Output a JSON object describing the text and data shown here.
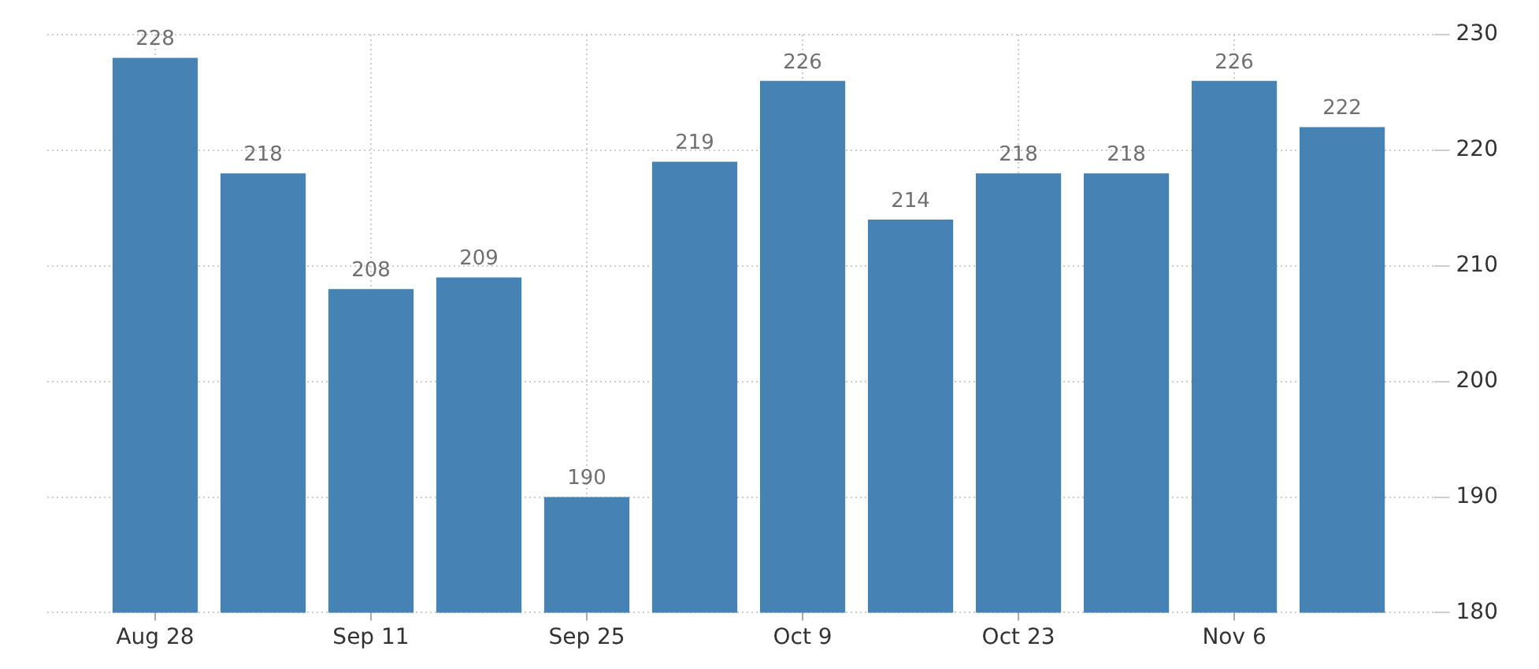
{
  "chart_data": {
    "type": "bar",
    "categories": [
      "Aug 28",
      null,
      "Sep 11",
      null,
      "Sep 25",
      null,
      "Oct 9",
      null,
      "Oct 23",
      null,
      "Nov 6",
      null
    ],
    "values": [
      228,
      218,
      208,
      209,
      190,
      219,
      226,
      214,
      218,
      218,
      226,
      222
    ],
    "color": "#4682b4",
    "ylim": [
      180,
      230
    ],
    "yticks": [
      180,
      190,
      200,
      210,
      220,
      230
    ],
    "grid": true,
    "data_labels": true
  }
}
